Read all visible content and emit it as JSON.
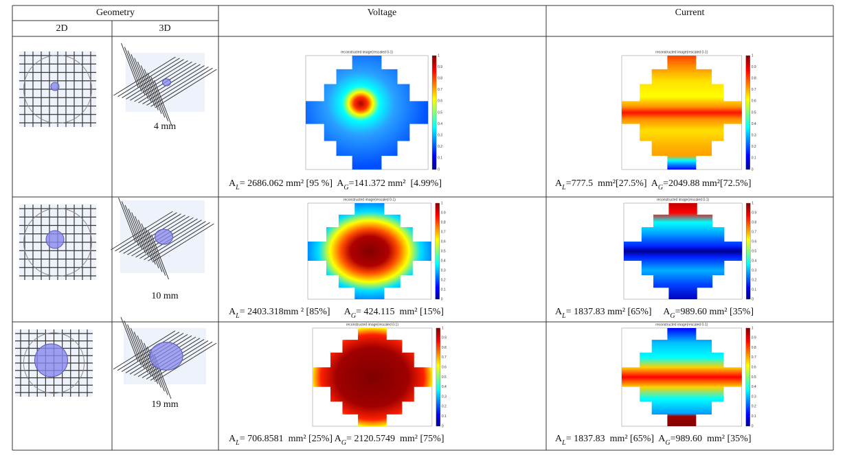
{
  "table": {
    "header": {
      "geometry": "Geometry",
      "sub": [
        "2D",
        "3D"
      ],
      "voltage": "Voltage",
      "current": "Current"
    },
    "plot_title": "reconstructed image(rescaled 0-1)",
    "colorbar_ticks": [
      0,
      0.1,
      0.2,
      0.3,
      0.4,
      0.5,
      0.6,
      0.7,
      0.8,
      0.9,
      1
    ],
    "rows": [
      {
        "size": "4 mm",
        "voltage_caption": [
          "A",
          "L",
          "= 2686.062 mm² [95 %]  A",
          "G",
          "=141.372 mm²  [4.99%]"
        ],
        "current_caption": [
          "A",
          "L",
          "=777.5  mm²[27.5%]  A",
          "G",
          "=2049.88 mm²[72.5%]"
        ]
      },
      {
        "size": "10 mm",
        "voltage_caption": [
          "A",
          "L",
          "= 2403.318mm ² [85%]      A",
          "G",
          "= 424.115  mm² [15%]"
        ],
        "current_caption": [
          "A",
          "L",
          "= 1837.83 mm² [65%]     A",
          "G",
          "=989.60 mm² [35%]"
        ]
      },
      {
        "size": "19 mm",
        "voltage_caption": [
          "A",
          "L",
          "= 706.8581  mm² [25%] A",
          "G",
          "= 2120.5749  mm² [75%]"
        ],
        "current_caption": [
          "A",
          "L",
          "= 1837.83  mm² [65%]  A",
          "G",
          "=989.60  mm² [35%]"
        ]
      }
    ]
  }
}
